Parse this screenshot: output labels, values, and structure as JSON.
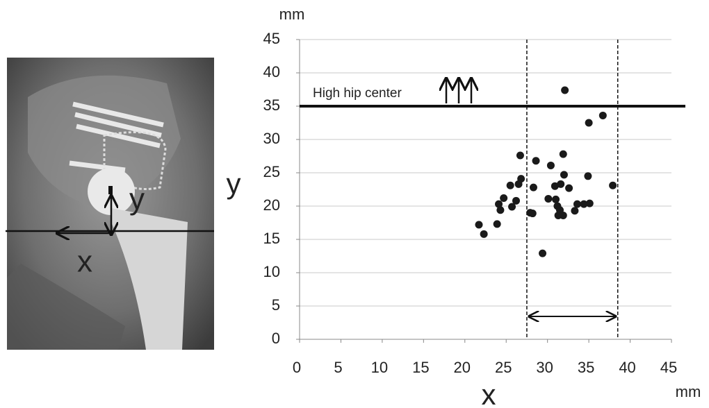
{
  "chart_data": {
    "type": "scatter",
    "x_label": "x",
    "y_label": "y",
    "x_unit": "mm",
    "y_unit": "mm",
    "x": [
      32.1,
      36.7,
      35.0,
      26.7,
      31.9,
      28.6,
      30.4,
      32.0,
      34.9,
      26.8,
      26.5,
      25.5,
      31.6,
      30.9,
      32.6,
      28.3,
      37.9,
      26.2,
      24.7,
      30.1,
      31.0,
      24.1,
      25.7,
      33.6,
      34.4,
      35.1,
      31.2,
      24.3,
      31.5,
      33.3,
      27.9,
      28.2,
      31.3,
      31.9,
      21.7,
      23.9,
      22.3,
      29.4
    ],
    "y": [
      37.4,
      33.6,
      32.5,
      27.6,
      27.8,
      26.8,
      26.1,
      24.7,
      24.5,
      24.1,
      23.3,
      23.1,
      23.3,
      23.0,
      22.7,
      22.8,
      23.1,
      20.8,
      21.2,
      21.1,
      21.0,
      20.3,
      19.9,
      20.3,
      20.3,
      20.4,
      20.0,
      19.4,
      19.4,
      19.3,
      19.0,
      18.9,
      18.6,
      18.6,
      17.2,
      17.3,
      15.8,
      12.9
    ],
    "color": "#1a1a1a",
    "xlim": [
      0,
      45
    ],
    "ylim": [
      0,
      45
    ],
    "xticks": [
      0,
      5,
      10,
      15,
      20,
      25,
      30,
      35,
      40,
      45
    ],
    "yticks": [
      0,
      5,
      10,
      15,
      20,
      25,
      30,
      35,
      40,
      45
    ],
    "grid": true,
    "reference_line": {
      "y": 35,
      "label": "High hip center"
    },
    "range_lines": [
      27.5,
      38.5
    ]
  },
  "image_labels": {
    "x": "x",
    "y": "y"
  }
}
